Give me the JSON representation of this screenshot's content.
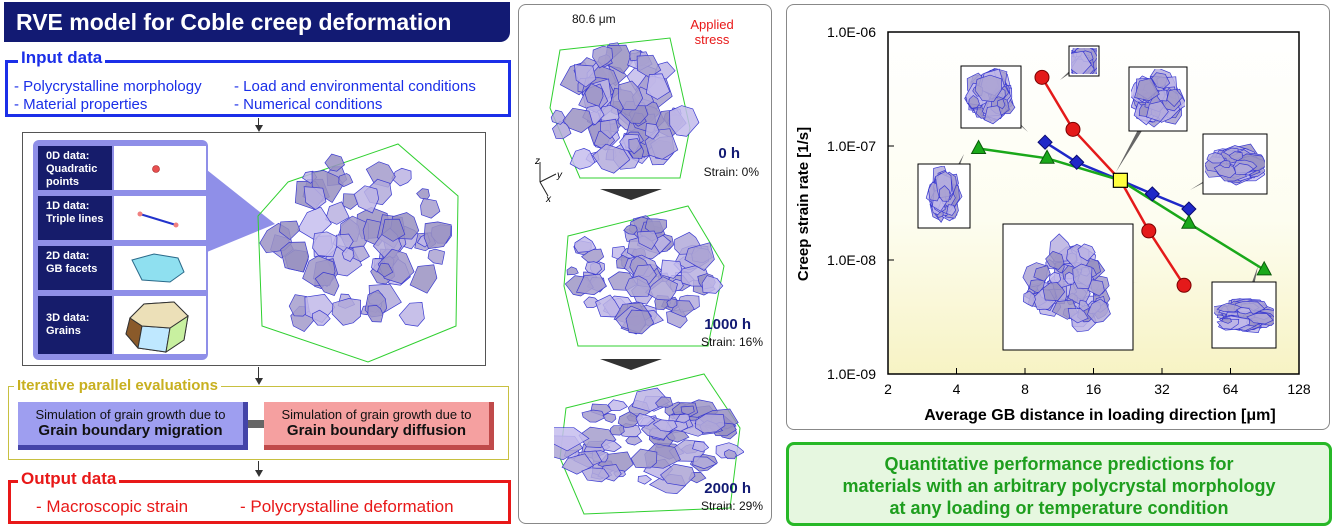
{
  "header": {
    "title": "RVE model for Coble creep deformation"
  },
  "input": {
    "title": "Input data",
    "items": [
      "- Polycrystalline morphology",
      "- Material properties",
      "- Load and environmental conditions",
      "- Numerical conditions"
    ]
  },
  "model": {
    "data_types": [
      {
        "line1": "0D data:",
        "line2": "Quadratic",
        "line3": "points"
      },
      {
        "line1": "1D data:",
        "line2": "Triple lines",
        "line3": ""
      },
      {
        "line1": "2D data:",
        "line2": "GB facets",
        "line3": ""
      },
      {
        "line1": "3D data:",
        "line2": "Grains",
        "line3": ""
      }
    ]
  },
  "iterative": {
    "title": "Iterative parallel evaluations",
    "sim_blue": {
      "line1": "Simulation of grain growth due to",
      "line2": "Grain boundary migration"
    },
    "sim_red": {
      "line1": "Simulation of grain growth due to",
      "line2": "Grain boundary diffusion"
    }
  },
  "output": {
    "title": "Output data",
    "items": [
      "- Macroscopic strain",
      "- Polycrystalline deformation"
    ]
  },
  "evolution": {
    "size_label": "80.6 μm",
    "stress_label_1": "Applied",
    "stress_label_2": "stress",
    "axes": {
      "z": "z",
      "y": "y",
      "x": "x"
    },
    "steps": [
      {
        "time": "0 h",
        "strain": "Strain: 0%"
      },
      {
        "time": "1000 h",
        "strain": "Strain: 16%"
      },
      {
        "time": "2000 h",
        "strain": "Strain: 29%"
      }
    ]
  },
  "chart_data": {
    "type": "line",
    "xlabel": "Average GB distance in loading direction [μm]",
    "ylabel": "Creep strain rate [1/s]",
    "x_scale": "log2",
    "y_scale": "log10",
    "xlim": [
      2,
      128
    ],
    "ylim": [
      1e-09,
      1e-06
    ],
    "xticks": [
      "2",
      "4",
      "8",
      "16",
      "32",
      "64",
      "128"
    ],
    "yticks": [
      "1.0E-09",
      "1.0E-08",
      "1.0E-07",
      "1.0E-06"
    ],
    "series": [
      {
        "color": "#e41a1a",
        "marker": "circle",
        "x": [
          9.5,
          13,
          21,
          28,
          40
        ],
        "y": [
          4e-07,
          1.4e-07,
          5e-08,
          1.8e-08,
          6e-09
        ]
      },
      {
        "color": "#1f28c8",
        "marker": "diamond",
        "x": [
          9.8,
          13.5,
          21,
          29,
          42
        ],
        "y": [
          1.08e-07,
          7.2e-08,
          5e-08,
          3.8e-08,
          2.8e-08
        ]
      },
      {
        "color": "#1aa81a",
        "marker": "triangle",
        "x": [
          5,
          10,
          21,
          42,
          90
        ],
        "y": [
          9.5e-08,
          7.8e-08,
          5e-08,
          2.1e-08,
          8.2e-09
        ]
      }
    ],
    "center_point": {
      "x": 21,
      "y": 5e-08,
      "color": "#ffff40"
    }
  },
  "conclusion": {
    "line1": "Quantitative performance predictions for",
    "line2": "materials with an arbitrary polycrystal morphology",
    "line3": "at any loading or temperature condition"
  },
  "colors": {
    "navy": "#121a73",
    "blue": "#1b2fe8",
    "red": "#e81818",
    "green": "#27b827",
    "grain": "#a9a3cf",
    "grain_edge": "#3a3ad0"
  }
}
